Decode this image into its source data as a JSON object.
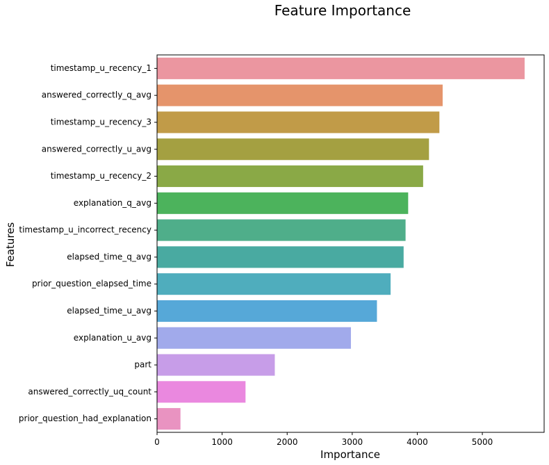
{
  "chart_data": {
    "type": "bar",
    "orientation": "horizontal",
    "title": "Feature Importance",
    "xlabel": "Importance",
    "ylabel": "Features",
    "xlim": [
      0,
      5950
    ],
    "xticks": [
      0,
      1000,
      2000,
      3000,
      4000,
      5000
    ],
    "grid": false,
    "categories": [
      "timestamp_u_recency_1",
      "answered_correctly_q_avg",
      "timestamp_u_recency_3",
      "answered_correctly_u_avg",
      "timestamp_u_recency_2",
      "explanation_q_avg",
      "timestamp_u_incorrect_recency",
      "elapsed_time_q_avg",
      "prior_question_elapsed_time",
      "elapsed_time_u_avg",
      "explanation_u_avg",
      "part",
      "answered_correctly_uq_count",
      "prior_question_had_explanation"
    ],
    "values": [
      5650,
      4390,
      4340,
      4180,
      4090,
      3860,
      3820,
      3790,
      3590,
      3380,
      2980,
      1810,
      1360,
      360
    ],
    "colors": [
      "#eb96a0",
      "#e5946b",
      "#c19b48",
      "#a4a041",
      "#8aa946",
      "#4cb35c",
      "#4fae8a",
      "#49aaa1",
      "#4fadbd",
      "#56a8d8",
      "#a1aaeb",
      "#c79de8",
      "#ea88df",
      "#e993c1"
    ]
  }
}
